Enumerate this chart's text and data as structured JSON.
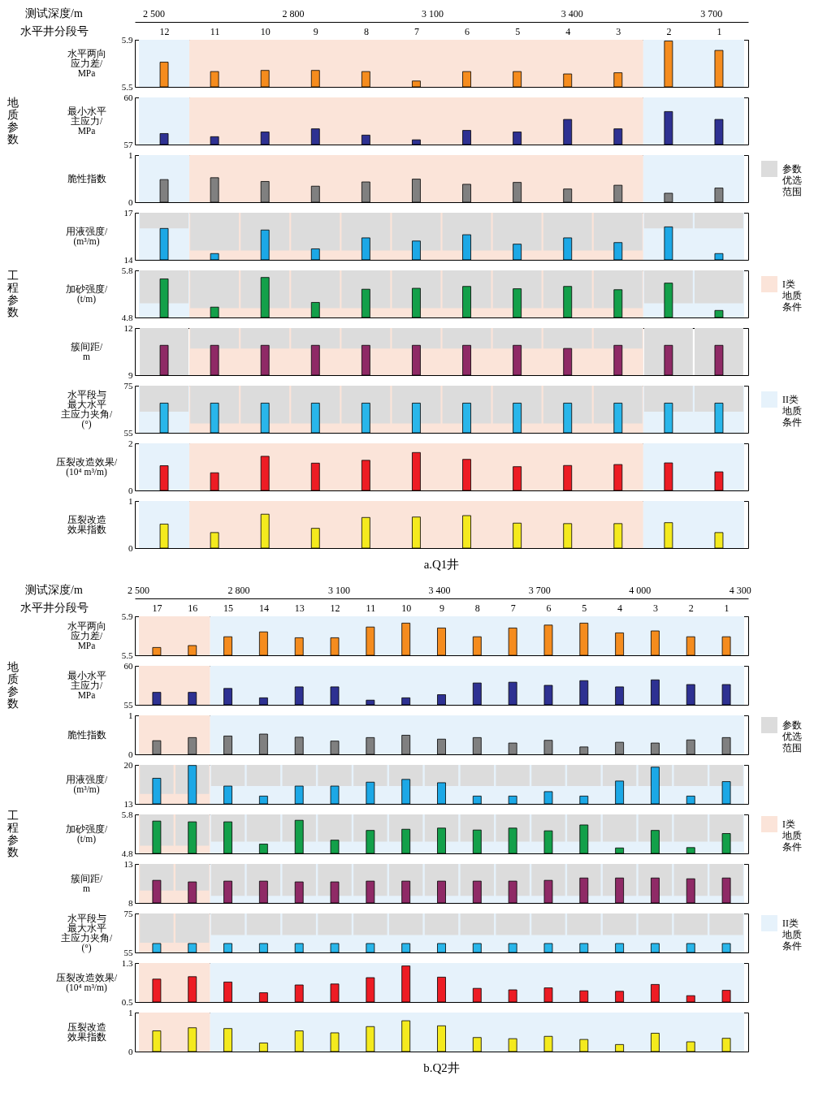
{
  "chart_data": [
    {
      "type": "bar",
      "ylabel": "水平两向应力差/MPa",
      "xlabel": "水平井分段号",
      "categories": [
        "12",
        "11",
        "10",
        "9",
        "8",
        "7",
        "6",
        "5",
        "4",
        "3",
        "2",
        "1"
      ],
      "x2label": "测试深度/m",
      "x2lim": [
        2460,
        3780
      ],
      "x2ticks": [
        {
          "value": 2500,
          "label": "2 500"
        },
        {
          "value": 2800,
          "label": "2 800"
        },
        {
          "value": 3100,
          "label": "3 100"
        },
        {
          "value": 3400,
          "label": "3 400"
        },
        {
          "value": 3700,
          "label": "3 700"
        }
      ],
      "values": [
        5.71,
        5.63,
        5.64,
        5.64,
        5.63,
        5.55,
        5.63,
        5.63,
        5.61,
        5.62,
        5.89,
        5.81
      ],
      "color": "#f58c1e",
      "ylim": [
        5.5,
        5.9
      ],
      "yticks": [
        5.5,
        5.9
      ],
      "bands": [
        {
          "axis": "x",
          "from": "12",
          "to": "12",
          "color": "#e6f2fb"
        },
        {
          "axis": "x",
          "from": "11",
          "to": "3",
          "color": "#fbe4d9"
        },
        {
          "axis": "x",
          "from": "2",
          "to": "1",
          "color": "#e6f2fb"
        }
      ]
    },
    {
      "type": "bar",
      "ylabel": "最小水平主应力/MPa",
      "categories": [
        "12",
        "11",
        "10",
        "9",
        "8",
        "7",
        "6",
        "5",
        "4",
        "3",
        "2",
        "1"
      ],
      "values": [
        57.7,
        57.5,
        57.8,
        58.0,
        57.6,
        57.3,
        57.9,
        57.8,
        58.6,
        58.0,
        59.1,
        58.6
      ],
      "color": "#2e3192",
      "ylim": [
        57,
        60
      ],
      "yticks": [
        57,
        60
      ],
      "tick_labels": "y",
      "annotations": [
        "地质参数"
      ],
      "bands": [
        {
          "axis": "x",
          "from": "12",
          "to": "12",
          "color": "#e6f2fb"
        },
        {
          "axis": "x",
          "from": "11",
          "to": "3",
          "color": "#fbe4d9"
        },
        {
          "axis": "x",
          "from": "2",
          "to": "1",
          "color": "#e6f2fb"
        }
      ]
    },
    {
      "type": "bar",
      "ylabel": "脆性指数",
      "categories": [
        "12",
        "11",
        "10",
        "9",
        "8",
        "7",
        "6",
        "5",
        "4",
        "3",
        "2",
        "1"
      ],
      "values": [
        0.48,
        0.52,
        0.44,
        0.34,
        0.43,
        0.49,
        0.38,
        0.42,
        0.28,
        0.36,
        0.19,
        0.3
      ],
      "color": "#808080",
      "ylim": [
        0,
        1
      ],
      "yticks": [
        0,
        1
      ],
      "tick_labels": "y",
      "bands": [
        {
          "axis": "x",
          "from": "12",
          "to": "12",
          "color": "#e6f2fb"
        },
        {
          "axis": "x",
          "from": "11",
          "to": "3",
          "color": "#fbe4d9"
        },
        {
          "axis": "x",
          "from": "2",
          "to": "1",
          "color": "#e6f2fb"
        }
      ]
    },
    {
      "type": "bar",
      "ylabel": "用液强度/(m³/m)",
      "categories": [
        "12",
        "11",
        "10",
        "9",
        "8",
        "7",
        "6",
        "5",
        "4",
        "3",
        "2",
        "1"
      ],
      "ylim": [
        14,
        17
      ],
      "yticks": [
        14,
        17
      ],
      "tick_labels": "y",
      "legend": "right",
      "series": [
        {
          "name": "参数优选范围",
          "color": "#dcdcdc",
          "base": [
            16.0,
            14.6,
            14.6,
            14.6,
            14.6,
            14.6,
            14.6,
            14.6,
            14.6,
            14.6,
            16.0,
            16.0
          ],
          "values": [
            1.0,
            2.4,
            2.4,
            2.4,
            2.4,
            2.4,
            2.4,
            2.4,
            2.4,
            2.4,
            1.0,
            1.0
          ]
        },
        {
          "color": "#1ca8e6",
          "values": [
            16.0,
            14.4,
            15.9,
            14.7,
            15.4,
            15.2,
            15.6,
            15.0,
            15.4,
            15.1,
            16.1,
            14.4
          ]
        }
      ],
      "bands": [
        {
          "axis": "x",
          "from": "12",
          "to": "12",
          "color": "#e6f2fb"
        },
        {
          "axis": "x",
          "from": "11",
          "to": "3",
          "color": "#fbe4d9"
        },
        {
          "axis": "x",
          "from": "2",
          "to": "1",
          "color": "#e6f2fb"
        }
      ]
    },
    {
      "type": "bar",
      "ylabel": "加砂强度/(t/m)",
      "categories": [
        "12",
        "11",
        "10",
        "9",
        "8",
        "7",
        "6",
        "5",
        "4",
        "3",
        "2",
        "1"
      ],
      "ylim": [
        4.8,
        5.8
      ],
      "yticks": [
        4.8,
        5.8
      ],
      "tick_labels": "y",
      "annotations": [
        "工程参数"
      ],
      "series": [
        {
          "color": "#dcdcdc",
          "base": [
            5.1,
            5.0,
            5.0,
            5.0,
            5.0,
            5.0,
            5.0,
            5.0,
            5.0,
            5.0,
            5.1,
            5.1
          ],
          "values": [
            0.7,
            0.8,
            0.8,
            0.8,
            0.8,
            0.8,
            0.8,
            0.8,
            0.8,
            0.8,
            0.7,
            0.7
          ]
        },
        {
          "color": "#13a04a",
          "values": [
            5.62,
            5.02,
            5.65,
            5.12,
            5.4,
            5.42,
            5.46,
            5.41,
            5.46,
            5.39,
            5.53,
            4.95
          ]
        }
      ],
      "bands": [
        {
          "axis": "x",
          "from": "12",
          "to": "12",
          "color": "#e6f2fb"
        },
        {
          "axis": "x",
          "from": "11",
          "to": "3",
          "color": "#fbe4d9"
        },
        {
          "axis": "x",
          "from": "2",
          "to": "1",
          "color": "#e6f2fb"
        }
      ]
    },
    {
      "type": "bar",
      "ylabel": "簇间距/m",
      "categories": [
        "12",
        "11",
        "10",
        "9",
        "8",
        "7",
        "6",
        "5",
        "4",
        "3",
        "2",
        "1"
      ],
      "ylim": [
        9,
        12
      ],
      "yticks": [
        9,
        12
      ],
      "tick_labels": "y",
      "legend": "right",
      "series": [
        {
          "color": "#dcdcdc",
          "base": [
            9,
            10.7,
            10.7,
            10.7,
            10.7,
            10.7,
            10.7,
            10.7,
            10.7,
            10.7,
            9,
            9
          ],
          "values": [
            3,
            1.3,
            1.3,
            1.3,
            1.3,
            1.3,
            1.3,
            1.3,
            1.3,
            1.3,
            3,
            3
          ]
        },
        {
          "color": "#8f2a66",
          "values": [
            10.9,
            10.9,
            10.9,
            10.9,
            10.9,
            10.9,
            10.9,
            10.9,
            10.7,
            10.9,
            10.9,
            10.9
          ]
        }
      ],
      "bands": [
        {
          "axis": "x",
          "from": "11",
          "to": "3",
          "color": "#fbe4d9",
          "label": "I类地质条件"
        }
      ]
    },
    {
      "type": "bar",
      "ylabel": "水平段与最大水平主应力夹角/(°)",
      "categories": [
        "12",
        "11",
        "10",
        "9",
        "8",
        "7",
        "6",
        "5",
        "4",
        "3",
        "2",
        "1"
      ],
      "ylim": [
        55,
        75
      ],
      "yticks": [
        55,
        75
      ],
      "tick_labels": "y",
      "series": [
        {
          "color": "#dcdcdc",
          "base": [
            64,
            59,
            59,
            59,
            59,
            59,
            59,
            59,
            59,
            59,
            64,
            64
          ],
          "values": [
            11,
            16,
            16,
            16,
            16,
            16,
            16,
            16,
            16,
            16,
            11,
            11
          ]
        },
        {
          "color": "#29b6ea",
          "values": [
            67.6,
            67.6,
            67.6,
            67.6,
            67.6,
            67.6,
            67.6,
            67.6,
            67.6,
            67.6,
            67.6,
            67.6
          ]
        }
      ],
      "bands": [
        {
          "axis": "x",
          "from": "12",
          "to": "12",
          "color": "#e6f2fb"
        },
        {
          "axis": "x",
          "from": "11",
          "to": "3",
          "color": "#fbe4d9"
        },
        {
          "axis": "x",
          "from": "2",
          "to": "1",
          "color": "#e6f2fb"
        }
      ]
    },
    {
      "type": "bar",
      "ylabel": "压裂改造效果/(10⁴ m³/m)",
      "categories": [
        "12",
        "11",
        "10",
        "9",
        "8",
        "7",
        "6",
        "5",
        "4",
        "3",
        "2",
        "1"
      ],
      "values": [
        1.05,
        0.75,
        1.45,
        1.16,
        1.28,
        1.61,
        1.32,
        1.01,
        1.06,
        1.1,
        1.17,
        0.79
      ],
      "color": "#ed1c24",
      "ylim": [
        0,
        2
      ],
      "yticks": [
        0,
        2
      ],
      "tick_labels": "y",
      "legend": "right",
      "bands": [
        {
          "axis": "x",
          "from": "12",
          "to": "12",
          "color": "#e6f2fb"
        },
        {
          "axis": "x",
          "from": "11",
          "to": "3",
          "color": "#fbe4d9"
        },
        {
          "axis": "x",
          "from": "2",
          "to": "1",
          "color": "#e6f2fb",
          "label": "II类地质条件"
        }
      ]
    },
    {
      "type": "bar",
      "ylabel": "压裂改造效果指数",
      "categories": [
        "12",
        "11",
        "10",
        "9",
        "8",
        "7",
        "6",
        "5",
        "4",
        "3",
        "2",
        "1"
      ],
      "values": [
        0.51,
        0.33,
        0.72,
        0.42,
        0.65,
        0.66,
        0.69,
        0.53,
        0.52,
        0.52,
        0.54,
        0.33
      ],
      "color": "#f4ea1e",
      "ylim": [
        0,
        1
      ],
      "yticks": [
        0,
        1
      ],
      "tick_labels": "y",
      "annotations": [
        "a.Q1井"
      ],
      "bands": [
        {
          "axis": "x",
          "from": "12",
          "to": "12",
          "color": "#e6f2fb"
        },
        {
          "axis": "x",
          "from": "11",
          "to": "3",
          "color": "#fbe4d9"
        },
        {
          "axis": "x",
          "from": "2",
          "to": "1",
          "color": "#e6f2fb"
        }
      ]
    },
    {
      "type": "bar",
      "ylabel": "水平两向应力差/MPa",
      "xlabel": "水平井分段号",
      "categories": [
        "17",
        "16",
        "15",
        "14",
        "13",
        "12",
        "11",
        "10",
        "9",
        "8",
        "7",
        "6",
        "5",
        "4",
        "3",
        "2",
        "1"
      ],
      "x2label": "测试深度/m",
      "x2lim": [
        2490,
        4325
      ],
      "x2ticks": [
        {
          "value": 2500,
          "label": "2 500"
        },
        {
          "value": 2800,
          "label": "2 800"
        },
        {
          "value": 3100,
          "label": "3 100"
        },
        {
          "value": 3400,
          "label": "3 400"
        },
        {
          "value": 3700,
          "label": "3 700"
        },
        {
          "value": 4000,
          "label": "4 000"
        },
        {
          "value": 4300,
          "label": "4 300"
        }
      ],
      "values": [
        5.58,
        5.6,
        5.69,
        5.74,
        5.68,
        5.68,
        5.79,
        5.83,
        5.78,
        5.69,
        5.78,
        5.81,
        5.83,
        5.73,
        5.75,
        5.69,
        5.69
      ],
      "color": "#f58c1e",
      "ylim": [
        5.5,
        5.9
      ],
      "yticks": [
        5.5,
        5.9
      ],
      "bands": [
        {
          "axis": "x",
          "from": "17",
          "to": "16",
          "color": "#fbe4d9"
        },
        {
          "axis": "x",
          "from": "15",
          "to": "1",
          "color": "#e6f2fb"
        }
      ]
    },
    {
      "type": "bar",
      "ylabel": "最小水平主应力/MPa",
      "categories": [
        "17",
        "16",
        "15",
        "14",
        "13",
        "12",
        "11",
        "10",
        "9",
        "8",
        "7",
        "6",
        "5",
        "4",
        "3",
        "2",
        "1"
      ],
      "values": [
        56.6,
        56.6,
        57.1,
        55.9,
        57.3,
        57.3,
        55.6,
        55.9,
        56.3,
        57.8,
        57.9,
        57.5,
        58.1,
        57.3,
        58.2,
        57.6,
        57.6
      ],
      "color": "#2e3192",
      "ylim": [
        55,
        60
      ],
      "yticks": [
        55,
        60
      ],
      "tick_labels": "y",
      "annotations": [
        "地质参数"
      ],
      "bands": [
        {
          "axis": "x",
          "from": "17",
          "to": "16",
          "color": "#fbe4d9"
        },
        {
          "axis": "x",
          "from": "15",
          "to": "1",
          "color": "#e6f2fb"
        }
      ]
    },
    {
      "type": "bar",
      "ylabel": "脆性指数",
      "categories": [
        "17",
        "16",
        "15",
        "14",
        "13",
        "12",
        "11",
        "10",
        "9",
        "8",
        "7",
        "6",
        "5",
        "4",
        "3",
        "2",
        "1"
      ],
      "values": [
        0.35,
        0.43,
        0.47,
        0.52,
        0.44,
        0.34,
        0.43,
        0.49,
        0.39,
        0.43,
        0.29,
        0.36,
        0.19,
        0.31,
        0.29,
        0.37,
        0.43
      ],
      "color": "#808080",
      "ylim": [
        0,
        1
      ],
      "yticks": [
        0,
        1
      ],
      "tick_labels": "y",
      "bands": [
        {
          "axis": "x",
          "from": "17",
          "to": "16",
          "color": "#fbe4d9"
        },
        {
          "axis": "x",
          "from": "15",
          "to": "1",
          "color": "#e6f2fb"
        }
      ]
    },
    {
      "type": "bar",
      "ylabel": "用液强度/(m³/m)",
      "categories": [
        "17",
        "16",
        "15",
        "14",
        "13",
        "12",
        "11",
        "10",
        "9",
        "8",
        "7",
        "6",
        "5",
        "4",
        "3",
        "2",
        "1"
      ],
      "ylim": [
        13,
        20
      ],
      "yticks": [
        13,
        20
      ],
      "tick_labels": "y",
      "legend": "right",
      "series": [
        {
          "name": "参数优选范围",
          "color": "#dcdcdc",
          "base": [
            14.8,
            14.8,
            16.2,
            16.2,
            16.2,
            16.2,
            16.2,
            16.2,
            16.2,
            16.2,
            16.2,
            16.2,
            16.2,
            16.2,
            16.2,
            16.2,
            16.2
          ],
          "values": [
            5.2,
            5.2,
            3.8,
            3.8,
            3.8,
            3.8,
            3.8,
            3.8,
            3.8,
            3.8,
            3.8,
            3.8,
            3.8,
            3.8,
            3.8,
            3.8,
            3.8
          ]
        },
        {
          "color": "#1ca8e6",
          "values": [
            17.6,
            19.9,
            16.2,
            14.4,
            16.2,
            16.2,
            16.9,
            17.4,
            16.8,
            14.4,
            14.4,
            15.2,
            14.4,
            17.1,
            19.6,
            14.4,
            17.0
          ]
        }
      ],
      "bands": [
        {
          "axis": "x",
          "from": "17",
          "to": "16",
          "color": "#fbe4d9"
        },
        {
          "axis": "x",
          "from": "15",
          "to": "1",
          "color": "#e6f2fb"
        }
      ]
    },
    {
      "type": "bar",
      "ylabel": "加砂强度/(t/m)",
      "categories": [
        "17",
        "16",
        "15",
        "14",
        "13",
        "12",
        "11",
        "10",
        "9",
        "8",
        "7",
        "6",
        "5",
        "4",
        "3",
        "2",
        "1"
      ],
      "ylim": [
        4.8,
        5.8
      ],
      "yticks": [
        4.8,
        5.8
      ],
      "tick_labels": "y",
      "annotations": [
        "工程参数"
      ],
      "series": [
        {
          "color": "#dcdcdc",
          "base": [
            5.0,
            5.0,
            5.1,
            5.1,
            5.1,
            5.1,
            5.1,
            5.1,
            5.1,
            5.1,
            5.1,
            5.1,
            5.1,
            5.1,
            5.1,
            5.1,
            5.1
          ],
          "values": [
            0.8,
            0.8,
            0.7,
            0.7,
            0.7,
            0.7,
            0.7,
            0.7,
            0.7,
            0.7,
            0.7,
            0.7,
            0.7,
            0.7,
            0.7,
            0.7,
            0.7
          ]
        },
        {
          "color": "#13a04a",
          "values": [
            5.63,
            5.61,
            5.61,
            5.04,
            5.65,
            5.14,
            5.39,
            5.42,
            5.45,
            5.4,
            5.45,
            5.38,
            5.53,
            4.94,
            5.39,
            4.95,
            5.31
          ]
        }
      ],
      "bands": [
        {
          "axis": "x",
          "from": "17",
          "to": "16",
          "color": "#fbe4d9"
        },
        {
          "axis": "x",
          "from": "15",
          "to": "1",
          "color": "#e6f2fb"
        }
      ]
    },
    {
      "type": "bar",
      "ylabel": "簇间距/m",
      "categories": [
        "17",
        "16",
        "15",
        "14",
        "13",
        "12",
        "11",
        "10",
        "9",
        "8",
        "7",
        "6",
        "5",
        "4",
        "3",
        "2",
        "1"
      ],
      "ylim": [
        8,
        13
      ],
      "yticks": [
        8,
        13
      ],
      "tick_labels": "y",
      "legend": "right",
      "series": [
        {
          "color": "#dcdcdc",
          "base": [
            9.6,
            9.6,
            8.9,
            8.9,
            8.9,
            8.9,
            8.9,
            8.9,
            8.9,
            8.9,
            8.9,
            8.9,
            8.9,
            8.9,
            8.9,
            8.9,
            8.9
          ],
          "values": [
            3.4,
            3.4,
            4.1,
            4.1,
            4.1,
            4.1,
            4.1,
            4.1,
            4.1,
            4.1,
            4.1,
            4.1,
            4.1,
            4.1,
            4.1,
            4.1,
            4.1
          ]
        },
        {
          "color": "#8f2a66",
          "values": [
            10.9,
            10.7,
            10.8,
            10.8,
            10.7,
            10.7,
            10.8,
            10.8,
            10.8,
            10.8,
            10.8,
            10.9,
            11.2,
            11.2,
            11.2,
            11.1,
            11.2
          ]
        }
      ],
      "bands": [
        {
          "axis": "x",
          "from": "17",
          "to": "16",
          "color": "#fbe4d9",
          "label": "I类地质条件"
        },
        {
          "axis": "x",
          "from": "15",
          "to": "1",
          "color": "#e6f2fb"
        }
      ]
    },
    {
      "type": "bar",
      "ylabel": "水平段与最大水平主应力夹角/(°)",
      "categories": [
        "17",
        "16",
        "15",
        "14",
        "13",
        "12",
        "11",
        "10",
        "9",
        "8",
        "7",
        "6",
        "5",
        "4",
        "3",
        "2",
        "1"
      ],
      "ylim": [
        55,
        75
      ],
      "yticks": [
        55,
        75
      ],
      "tick_labels": "y",
      "series": [
        {
          "color": "#dcdcdc",
          "base": [
            60,
            60,
            64,
            64,
            64,
            64,
            64,
            64,
            64,
            64,
            64,
            64,
            64,
            64,
            64,
            64,
            64
          ],
          "values": [
            15,
            15,
            11,
            11,
            11,
            11,
            11,
            11,
            11,
            11,
            11,
            11,
            11,
            11,
            11,
            11,
            11
          ]
        },
        {
          "color": "#29b6ea",
          "values": [
            59.6,
            59.6,
            59.6,
            59.6,
            59.6,
            59.6,
            59.6,
            59.6,
            59.6,
            59.6,
            59.6,
            59.6,
            59.6,
            59.6,
            59.6,
            59.6,
            59.6
          ]
        }
      ],
      "bands": [
        {
          "axis": "x",
          "from": "17",
          "to": "16",
          "color": "#fbe4d9"
        },
        {
          "axis": "x",
          "from": "15",
          "to": "1",
          "color": "#e6f2fb"
        }
      ]
    },
    {
      "type": "bar",
      "ylabel": "压裂改造效果/(10⁴ m³/m)",
      "categories": [
        "17",
        "16",
        "15",
        "14",
        "13",
        "12",
        "11",
        "10",
        "9",
        "8",
        "7",
        "6",
        "5",
        "4",
        "3",
        "2",
        "1"
      ],
      "values": [
        0.97,
        1.02,
        0.91,
        0.69,
        0.85,
        0.87,
        1.0,
        1.24,
        1.01,
        0.78,
        0.75,
        0.79,
        0.73,
        0.72,
        0.86,
        0.63,
        0.74
      ],
      "color": "#ed1c24",
      "ylim": [
        0.5,
        1.3
      ],
      "yticks": [
        0.5,
        1.3
      ],
      "tick_labels": "y",
      "legend": "right",
      "bands": [
        {
          "axis": "x",
          "from": "17",
          "to": "16",
          "color": "#fbe4d9"
        },
        {
          "axis": "x",
          "from": "15",
          "to": "1",
          "color": "#e6f2fb",
          "label": "II类地质条件"
        }
      ]
    },
    {
      "type": "bar",
      "ylabel": "压裂改造效果指数",
      "categories": [
        "17",
        "16",
        "15",
        "14",
        "13",
        "12",
        "11",
        "10",
        "9",
        "8",
        "7",
        "6",
        "5",
        "4",
        "3",
        "2",
        "1"
      ],
      "values": [
        0.53,
        0.61,
        0.59,
        0.22,
        0.53,
        0.48,
        0.64,
        0.79,
        0.66,
        0.36,
        0.33,
        0.39,
        0.31,
        0.18,
        0.47,
        0.25,
        0.34
      ],
      "color": "#f4ea1e",
      "ylim": [
        0,
        1
      ],
      "yticks": [
        0,
        1
      ],
      "tick_labels": "y",
      "annotations": [
        "b.Q2井"
      ],
      "bands": [
        {
          "axis": "x",
          "from": "17",
          "to": "16",
          "color": "#fbe4d9"
        },
        {
          "axis": "x",
          "from": "15",
          "to": "1",
          "color": "#e6f2fb"
        }
      ]
    }
  ]
}
